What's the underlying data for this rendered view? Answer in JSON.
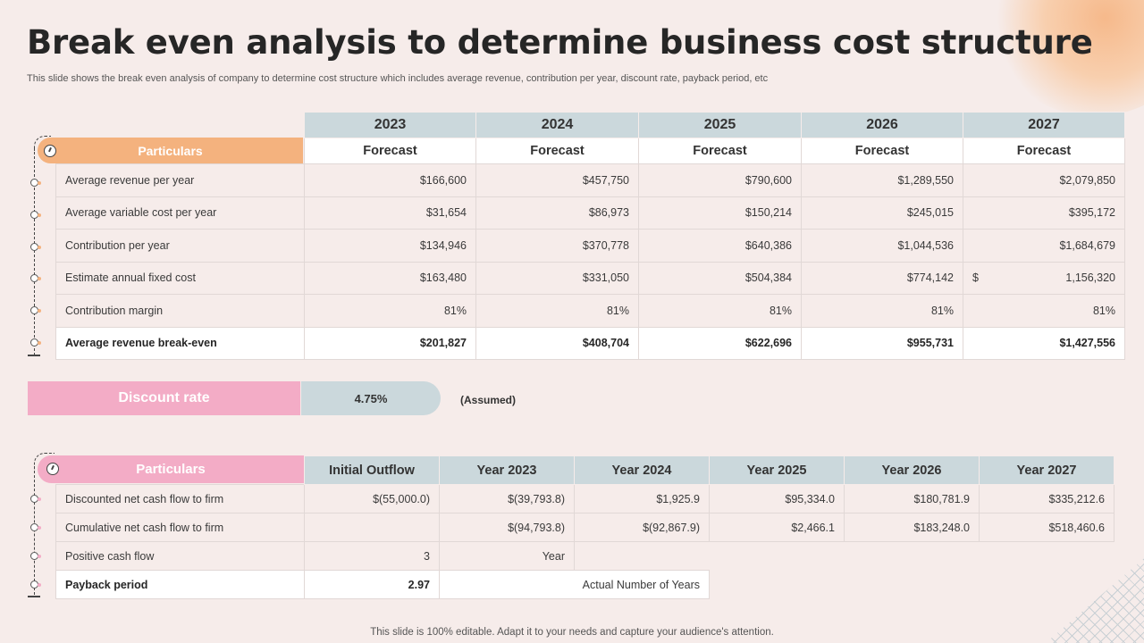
{
  "title": "Break even analysis to determine business cost structure",
  "subtitle": "This slide shows the break even analysis of company to determine cost structure which includes average revenue, contribution per year, discount rate, payback period, etc",
  "footer": "This slide is 100% editable. Adapt it to your needs and capture your audience's attention.",
  "table1": {
    "particulars_label": "Particulars",
    "years": [
      "2023",
      "2024",
      "2025",
      "2026",
      "2027"
    ],
    "subheaders": [
      "Forecast",
      "Forecast",
      "Forecast",
      "Forecast",
      "Forecast"
    ],
    "rows": [
      {
        "label": "Average  revenue  per year",
        "values": [
          "$166,600",
          "$457,750",
          "$790,600",
          "$1,289,550",
          "$2,079,850"
        ]
      },
      {
        "label": "Average  variable  cost per year",
        "values": [
          "$31,654",
          "$86,973",
          "$150,214",
          "$245,015",
          "$395,172"
        ]
      },
      {
        "label": "Contribution  per year",
        "values": [
          "$134,946",
          "$370,778",
          "$640,386",
          "$1,044,536",
          "$1,684,679"
        ]
      },
      {
        "label": "Estimate  annual  fixed cost",
        "values": [
          "$163,480",
          "$331,050",
          "$504,384",
          "$774,142",
          "1,156,320"
        ],
        "last_prefix": "$"
      },
      {
        "label": "Contribution  margin",
        "values": [
          "81%",
          "81%",
          "81%",
          "81%",
          "81%"
        ]
      },
      {
        "label": "Average revenue break-even",
        "values": [
          "$201,827",
          "$408,704",
          "$622,696",
          "$955,731",
          "$1,427,556"
        ]
      }
    ]
  },
  "discount": {
    "label": "Discount rate",
    "value": "4.75%",
    "note": "(Assumed)"
  },
  "table2": {
    "particulars_label": "Particulars",
    "headers": [
      "Initial Outflow",
      "Year 2023",
      "Year 2024",
      "Year 2025",
      "Year 2026",
      "Year 2027"
    ],
    "rows": [
      {
        "label": "Discounted  net cash flow to firm",
        "values": [
          "$(55,000.0)",
          "$(39,793.8)",
          "$1,925.9",
          "$95,334.0",
          "$180,781.9",
          "$335,212.6"
        ]
      },
      {
        "label": "Cumulative  net cash flow to firm",
        "values": [
          "",
          "$(94,793.8)",
          "$(92,867.9)",
          "$2,466.1",
          "$183,248.0",
          "$518,460.6"
        ]
      },
      {
        "label": "Positive cash flow",
        "values": [
          "3",
          "Year"
        ]
      },
      {
        "label": "Payback period",
        "values": [
          "2.97",
          "Actual Number of Years"
        ]
      }
    ]
  },
  "colors": {
    "orange": "#f4b27e",
    "pink": "#f3acc6",
    "blue_gray": "#cbd8dc",
    "background": "#f6ecea"
  }
}
